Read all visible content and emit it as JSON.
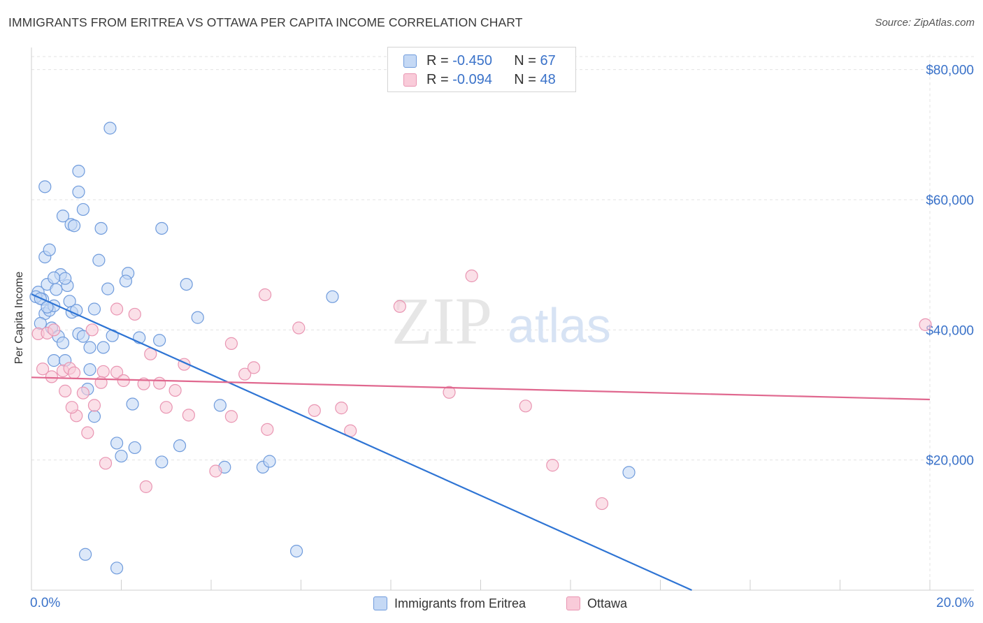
{
  "title": "IMMIGRANTS FROM ERITREA VS OTTAWA PER CAPITA INCOME CORRELATION CHART",
  "source": "Source: ZipAtlas.com",
  "watermark": {
    "zip": "ZIP",
    "atlas": "atlas"
  },
  "legend": {
    "r_label": "R =",
    "n_label": "N =",
    "rows": [
      {
        "r": "-0.450",
        "n": "67",
        "fill": "#c5d9f5",
        "stroke": "#6f9bdc"
      },
      {
        "r": "-0.094",
        "n": "48",
        "fill": "#f9cbd9",
        "stroke": "#e995b2"
      }
    ]
  },
  "bottom_legend": [
    "Immigrants from Eritrea",
    "Ottawa"
  ],
  "chart_data": {
    "type": "scatter",
    "ylabel": "Per Capita Income",
    "xlabel": "",
    "x_tick_labels": {
      "left": "0.0%",
      "right": "20.0%"
    },
    "xlim": [
      0,
      20
    ],
    "ylim": [
      0,
      82000
    ],
    "y_ticks": [
      20000,
      40000,
      60000,
      80000
    ],
    "y_tick_labels": [
      "$20,000",
      "$40,000",
      "$60,000",
      "$80,000"
    ],
    "grid": true,
    "series": [
      {
        "name": "Immigrants from Eritrea",
        "color": "#6f9bdc",
        "fill": "#c5d9f5",
        "line_color": "#2e74d4",
        "trend": {
          "x": [
            0.0,
            14.7
          ],
          "y": [
            45500,
            0
          ]
        },
        "points": [
          [
            0.15,
            45800
          ],
          [
            0.25,
            44700
          ],
          [
            0.3,
            42500
          ],
          [
            0.4,
            43000
          ],
          [
            0.2,
            41000
          ],
          [
            0.35,
            47000
          ],
          [
            0.55,
            46200
          ],
          [
            0.5,
            43700
          ],
          [
            0.45,
            40300
          ],
          [
            0.6,
            39000
          ],
          [
            0.7,
            38000
          ],
          [
            0.65,
            48500
          ],
          [
            0.8,
            46800
          ],
          [
            0.85,
            44400
          ],
          [
            0.9,
            42700
          ],
          [
            1.05,
            39400
          ],
          [
            1.15,
            39000
          ],
          [
            1.0,
            43000
          ],
          [
            0.75,
            47900
          ],
          [
            0.3,
            51200
          ],
          [
            0.4,
            52300
          ],
          [
            0.7,
            57500
          ],
          [
            0.88,
            56200
          ],
          [
            0.95,
            56000
          ],
          [
            1.15,
            58500
          ],
          [
            1.05,
            61200
          ],
          [
            0.3,
            62000
          ],
          [
            1.05,
            64400
          ],
          [
            1.55,
            55600
          ],
          [
            1.5,
            50700
          ],
          [
            1.7,
            46300
          ],
          [
            1.3,
            37300
          ],
          [
            1.6,
            37300
          ],
          [
            0.5,
            35300
          ],
          [
            0.75,
            35300
          ],
          [
            1.3,
            33900
          ],
          [
            1.25,
            30900
          ],
          [
            1.4,
            26700
          ],
          [
            1.8,
            39100
          ],
          [
            2.15,
            48700
          ],
          [
            2.1,
            47500
          ],
          [
            2.4,
            38800
          ],
          [
            2.85,
            38400
          ],
          [
            2.9,
            55600
          ],
          [
            3.45,
            47000
          ],
          [
            3.7,
            41900
          ],
          [
            1.75,
            71000
          ],
          [
            2.25,
            28600
          ],
          [
            1.9,
            22600
          ],
          [
            2.0,
            20600
          ],
          [
            2.3,
            21900
          ],
          [
            2.9,
            19700
          ],
          [
            3.3,
            22200
          ],
          [
            4.2,
            28400
          ],
          [
            4.3,
            18900
          ],
          [
            5.15,
            18900
          ],
          [
            5.3,
            19800
          ],
          [
            1.2,
            5500
          ],
          [
            1.9,
            3400
          ],
          [
            5.9,
            6000
          ],
          [
            6.7,
            45100
          ],
          [
            13.3,
            18100
          ],
          [
            0.1,
            45100
          ],
          [
            0.2,
            44800
          ],
          [
            0.5,
            48000
          ],
          [
            1.4,
            43200
          ],
          [
            0.35,
            43500
          ]
        ]
      },
      {
        "name": "Ottawa",
        "color": "#e995b2",
        "fill": "#f9cbd9",
        "line_color": "#e0688f",
        "trend": {
          "x": [
            0.0,
            20.0
          ],
          "y": [
            32700,
            29300
          ]
        },
        "points": [
          [
            0.15,
            39400
          ],
          [
            0.35,
            39500
          ],
          [
            0.5,
            40000
          ],
          [
            0.25,
            34000
          ],
          [
            0.45,
            32800
          ],
          [
            0.7,
            33700
          ],
          [
            0.85,
            34100
          ],
          [
            0.95,
            33400
          ],
          [
            0.75,
            30600
          ],
          [
            1.15,
            30300
          ],
          [
            1.0,
            26800
          ],
          [
            1.25,
            24200
          ],
          [
            1.4,
            28400
          ],
          [
            1.35,
            40000
          ],
          [
            1.6,
            33600
          ],
          [
            1.55,
            31900
          ],
          [
            1.9,
            33500
          ],
          [
            1.9,
            43200
          ],
          [
            2.05,
            32200
          ],
          [
            2.3,
            42400
          ],
          [
            2.5,
            31700
          ],
          [
            2.65,
            36300
          ],
          [
            2.85,
            31800
          ],
          [
            3.0,
            28100
          ],
          [
            3.2,
            30700
          ],
          [
            3.4,
            34700
          ],
          [
            3.5,
            26900
          ],
          [
            1.65,
            19500
          ],
          [
            2.55,
            15900
          ],
          [
            4.1,
            18300
          ],
          [
            4.45,
            26700
          ],
          [
            4.45,
            37900
          ],
          [
            4.75,
            33200
          ],
          [
            4.95,
            34200
          ],
          [
            5.2,
            45400
          ],
          [
            5.25,
            24700
          ],
          [
            5.95,
            40300
          ],
          [
            6.3,
            27600
          ],
          [
            6.9,
            28000
          ],
          [
            7.1,
            24500
          ],
          [
            8.2,
            43600
          ],
          [
            9.3,
            30400
          ],
          [
            9.8,
            48300
          ],
          [
            11.0,
            28300
          ],
          [
            11.6,
            19200
          ],
          [
            12.7,
            13300
          ],
          [
            19.9,
            40800
          ],
          [
            0.9,
            28100
          ]
        ]
      }
    ]
  }
}
